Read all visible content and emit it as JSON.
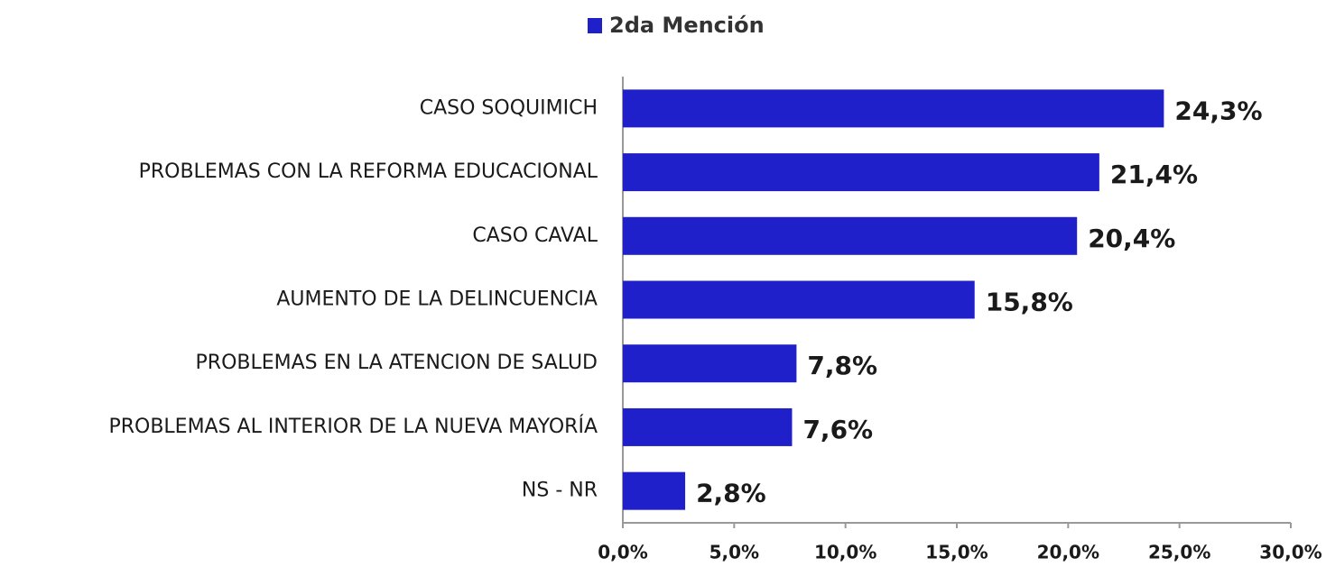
{
  "chart_data": {
    "type": "barh",
    "categories": [
      "CASO SOQUIMICH",
      "PROBLEMAS CON LA REFORMA EDUCACIONAL",
      "CASO CAVAL",
      "AUMENTO DE LA DELINCUENCIA",
      "PROBLEMAS EN LA ATENCION DE SALUD",
      "PROBLEMAS AL INTERIOR DE LA NUEVA MAYORÍA",
      "NS - NR"
    ],
    "series": [
      {
        "name": "2da Mención",
        "color": "#1f20c9",
        "values": [
          24.3,
          21.4,
          20.4,
          15.8,
          7.8,
          7.6,
          2.8
        ],
        "value_labels": [
          "24,3%",
          "21,4%",
          "20,4%",
          "15,8%",
          "7,8%",
          "7,6%",
          "2,8%"
        ]
      }
    ],
    "xlim": [
      0,
      30
    ],
    "xticks": [
      {
        "value": 0,
        "label": "0,0%"
      },
      {
        "value": 5,
        "label": "5,0%"
      },
      {
        "value": 10,
        "label": "10,0%"
      },
      {
        "value": 15,
        "label": "15,0%"
      },
      {
        "value": 20,
        "label": "20,0%"
      },
      {
        "value": 25,
        "label": "25,0%"
      },
      {
        "value": 30,
        "label": "30,0%"
      }
    ],
    "legend": "top",
    "grid": false
  }
}
